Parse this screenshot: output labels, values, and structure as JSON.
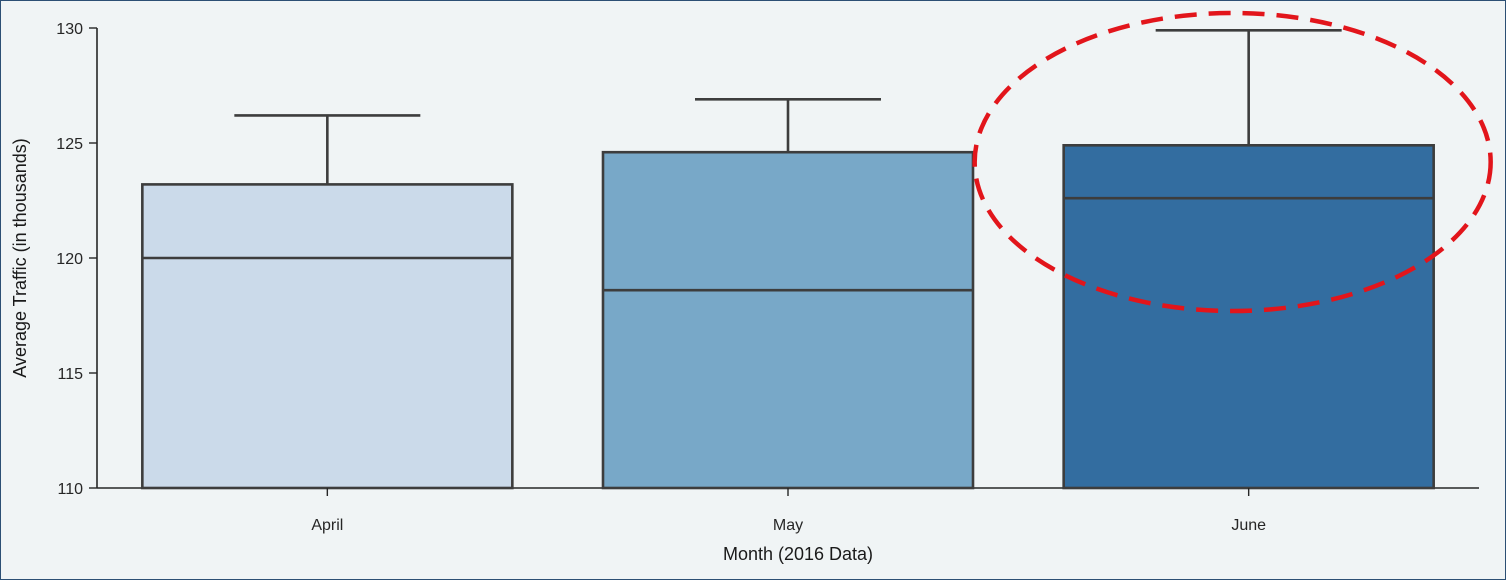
{
  "chart_data": {
    "type": "box",
    "categories": [
      "April",
      "May",
      "June"
    ],
    "boxes": [
      {
        "category": "April",
        "whisker_low": 110,
        "q1": 110,
        "median": 120.0,
        "q3": 123.2,
        "whisker_high": 126.2,
        "color": "#cbdaea"
      },
      {
        "category": "May",
        "whisker_low": 110,
        "q1": 110,
        "median": 118.6,
        "q3": 124.6,
        "whisker_high": 126.9,
        "color": "#78a8c8"
      },
      {
        "category": "June",
        "whisker_low": 110,
        "q1": 110,
        "median": 122.6,
        "q3": 124.9,
        "whisker_high": 129.9,
        "color": "#336da0"
      }
    ],
    "xlabel": "Month (2016 Data)",
    "ylabel": "Average Traffic (in thousands)",
    "ylim": [
      110,
      130
    ],
    "yticks": [
      110,
      115,
      120,
      125,
      130
    ],
    "grid": false,
    "highlight": {
      "category": "June",
      "shape": "dashed-ellipse",
      "color": "#e2151b"
    }
  }
}
